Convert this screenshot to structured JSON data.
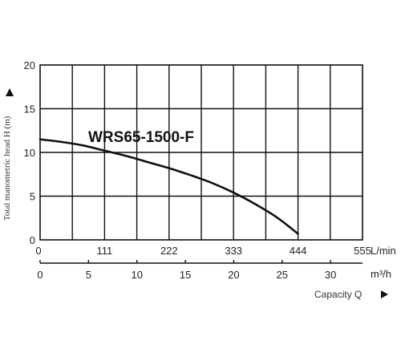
{
  "chart_data": {
    "type": "line",
    "title": "WRS65-1500-F",
    "ylabel": "Total manometric head H (m)",
    "xlabel": "Capacity Q",
    "y_ticks": [
      0,
      5,
      10,
      15,
      20
    ],
    "ylim": [
      0,
      20
    ],
    "x_axis_lpm": {
      "unit": "L/min",
      "ticks": [
        0,
        111,
        222,
        333,
        444,
        555
      ],
      "range": [
        0,
        555
      ]
    },
    "x_axis_m3h": {
      "unit": "m³/h",
      "ticks": [
        0,
        5,
        10,
        15,
        20,
        25,
        30
      ],
      "range": [
        0,
        33.3
      ]
    },
    "grid": true,
    "series": [
      {
        "x": [
          0,
          37,
          74,
          111,
          148,
          185,
          222,
          259,
          296,
          333,
          370,
          407,
          444
        ],
        "y": [
          11.5,
          11.2,
          10.8,
          10.2,
          9.6,
          8.9,
          8.2,
          7.4,
          6.5,
          5.4,
          4.1,
          2.6,
          0.7
        ]
      }
    ]
  }
}
